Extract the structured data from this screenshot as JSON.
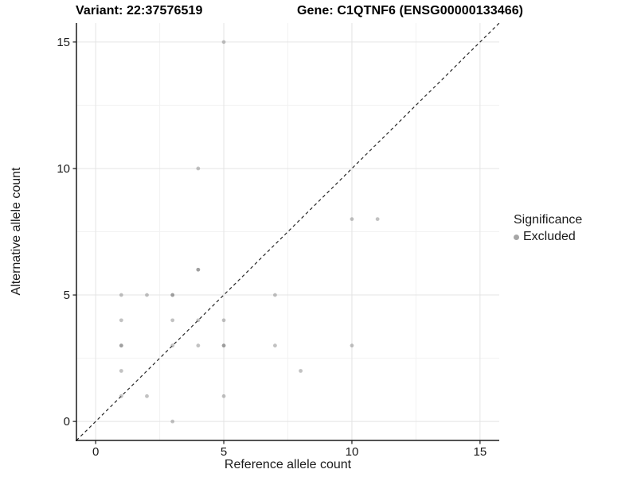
{
  "header": {
    "variant_title": "Variant: 22:37576519",
    "gene_title": "Gene: C1QTNF6 (ENSG00000133466)"
  },
  "axes": {
    "x_label": "Reference allele count",
    "y_label": "Alternative allele count",
    "x_ticks": [
      0,
      5,
      10,
      15
    ],
    "y_ticks": [
      0,
      5,
      10,
      15
    ],
    "minor_ticks": [
      2.5,
      7.5,
      12.5
    ]
  },
  "legend": {
    "title": "Significance",
    "items": [
      {
        "label": "Excluded",
        "color": "#a6a6a6"
      }
    ]
  },
  "colors": {
    "point": "#777777",
    "point_opacity": 0.45,
    "grid_major": "#e4e4e4",
    "grid_minor": "#f2f2f2",
    "axis_line": "#1a1a1a",
    "tick_text": "#1a1a1a",
    "identity_line": "#262626"
  },
  "chart_data": {
    "type": "scatter",
    "title": "Variant: 22:37576519 / Gene: C1QTNF6 (ENSG00000133466)",
    "xlabel": "Reference allele count",
    "ylabel": "Alternative allele count",
    "xlim": [
      -0.75,
      15.75
    ],
    "ylim": [
      -0.75,
      15.75
    ],
    "grid": true,
    "legend_position": "right",
    "series_name": "Excluded",
    "identity_line": {
      "style": "dashed",
      "equation": "y = x",
      "from": [
        -0.75,
        -0.75
      ],
      "to": [
        15.75,
        15.75
      ]
    },
    "points": [
      {
        "x": 1,
        "y": 1,
        "n": 1
      },
      {
        "x": 1,
        "y": 2,
        "n": 1
      },
      {
        "x": 1,
        "y": 3,
        "n": 2
      },
      {
        "x": 1,
        "y": 4,
        "n": 1
      },
      {
        "x": 1,
        "y": 5,
        "n": 1
      },
      {
        "x": 2,
        "y": 1,
        "n": 1
      },
      {
        "x": 2,
        "y": 5,
        "n": 1
      },
      {
        "x": 3,
        "y": 0,
        "n": 1
      },
      {
        "x": 3,
        "y": 3,
        "n": 1
      },
      {
        "x": 3,
        "y": 4,
        "n": 1
      },
      {
        "x": 3,
        "y": 5,
        "n": 2
      },
      {
        "x": 4,
        "y": 3,
        "n": 1
      },
      {
        "x": 4,
        "y": 4,
        "n": 1
      },
      {
        "x": 4,
        "y": 6,
        "n": 2
      },
      {
        "x": 4,
        "y": 10,
        "n": 1
      },
      {
        "x": 5,
        "y": 1,
        "n": 1
      },
      {
        "x": 5,
        "y": 3,
        "n": 2
      },
      {
        "x": 5,
        "y": 4,
        "n": 1
      },
      {
        "x": 5,
        "y": 15,
        "n": 1
      },
      {
        "x": 7,
        "y": 3,
        "n": 1
      },
      {
        "x": 7,
        "y": 5,
        "n": 1
      },
      {
        "x": 8,
        "y": 2,
        "n": 1
      },
      {
        "x": 10,
        "y": 3,
        "n": 1
      },
      {
        "x": 10,
        "y": 8,
        "n": 1
      },
      {
        "x": 11,
        "y": 8,
        "n": 1
      }
    ]
  }
}
